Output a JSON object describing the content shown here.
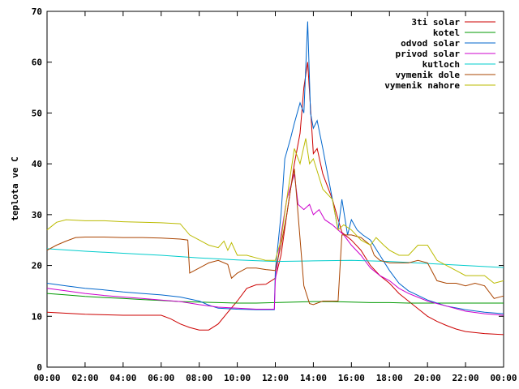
{
  "chart_data": {
    "type": "line",
    "title": "",
    "xlabel": "",
    "ylabel": "teplota ve C",
    "xlim": [
      0,
      24
    ],
    "ylim": [
      0,
      70
    ],
    "x_ticks": [
      "00:00",
      "02:00",
      "04:00",
      "06:00",
      "08:00",
      "10:00",
      "12:00",
      "14:00",
      "16:00",
      "18:00",
      "20:00",
      "22:00",
      "00:00"
    ],
    "y_ticks": [
      "0",
      "10",
      "20",
      "30",
      "40",
      "50",
      "60",
      "70"
    ],
    "grid": false,
    "legend_position": "top-right",
    "series": [
      {
        "name": "3ti solar",
        "color": "#cc0000",
        "points": [
          [
            0,
            10.8
          ],
          [
            1,
            10.6
          ],
          [
            2,
            10.4
          ],
          [
            3,
            10.3
          ],
          [
            4,
            10.2
          ],
          [
            5,
            10.2
          ],
          [
            6,
            10.2
          ],
          [
            6.5,
            9.5
          ],
          [
            7,
            8.5
          ],
          [
            7.5,
            7.8
          ],
          [
            8,
            7.3
          ],
          [
            8.5,
            7.3
          ],
          [
            9,
            8.5
          ],
          [
            9.5,
            10.8
          ],
          [
            10,
            13
          ],
          [
            10.5,
            15.5
          ],
          [
            11,
            16.2
          ],
          [
            11.5,
            16.3
          ],
          [
            12,
            17.5
          ],
          [
            12.3,
            22
          ],
          [
            12.6,
            30
          ],
          [
            13,
            40
          ],
          [
            13.3,
            46
          ],
          [
            13.5,
            55
          ],
          [
            13.7,
            60
          ],
          [
            14,
            42
          ],
          [
            14.2,
            43
          ],
          [
            14.5,
            38
          ],
          [
            15,
            33
          ],
          [
            15.5,
            26.5
          ],
          [
            16,
            25
          ],
          [
            16.5,
            23
          ],
          [
            17,
            20
          ],
          [
            17.5,
            18
          ],
          [
            18,
            16.5
          ],
          [
            18.5,
            14.5
          ],
          [
            19,
            13
          ],
          [
            19.5,
            11.5
          ],
          [
            20,
            10
          ],
          [
            20.5,
            9
          ],
          [
            21,
            8.2
          ],
          [
            21.5,
            7.5
          ],
          [
            22,
            7
          ],
          [
            22.5,
            6.8
          ],
          [
            23,
            6.6
          ],
          [
            24,
            6.4
          ]
        ]
      },
      {
        "name": "kotel",
        "color": "#009900",
        "points": [
          [
            0,
            14.5
          ],
          [
            1,
            14.2
          ],
          [
            2,
            13.9
          ],
          [
            3,
            13.7
          ],
          [
            4,
            13.5
          ],
          [
            5,
            13.3
          ],
          [
            6,
            13.1
          ],
          [
            7,
            12.9
          ],
          [
            8,
            12.8
          ],
          [
            9,
            12.7
          ],
          [
            10,
            12.6
          ],
          [
            11,
            12.6
          ],
          [
            12,
            12.7
          ],
          [
            13,
            12.8
          ],
          [
            14,
            12.9
          ],
          [
            15,
            12.9
          ],
          [
            16,
            12.8
          ],
          [
            17,
            12.7
          ],
          [
            18,
            12.7
          ],
          [
            19,
            12.6
          ],
          [
            20,
            12.6
          ],
          [
            21,
            12.6
          ],
          [
            22,
            12.6
          ],
          [
            23,
            12.6
          ],
          [
            24,
            12.6
          ]
        ]
      },
      {
        "name": "odvod solar",
        "color": "#0066cc",
        "points": [
          [
            0,
            16.5
          ],
          [
            1,
            16
          ],
          [
            2,
            15.5
          ],
          [
            3,
            15.2
          ],
          [
            4,
            14.8
          ],
          [
            5,
            14.5
          ],
          [
            6,
            14.2
          ],
          [
            7,
            13.8
          ],
          [
            8,
            13
          ],
          [
            8.5,
            12.2
          ],
          [
            9,
            11.6
          ],
          [
            10,
            11.4
          ],
          [
            11,
            11.3
          ],
          [
            11.95,
            11.3
          ],
          [
            12,
            19
          ],
          [
            12.3,
            30
          ],
          [
            12.5,
            41
          ],
          [
            12.8,
            45
          ],
          [
            13,
            48
          ],
          [
            13.3,
            52
          ],
          [
            13.5,
            50
          ],
          [
            13.7,
            68
          ],
          [
            13.85,
            50
          ],
          [
            14,
            47
          ],
          [
            14.2,
            48.5
          ],
          [
            14.5,
            43
          ],
          [
            14.8,
            37
          ],
          [
            15,
            33
          ],
          [
            15.3,
            27
          ],
          [
            15.5,
            33
          ],
          [
            15.8,
            26
          ],
          [
            16,
            29
          ],
          [
            16.3,
            27
          ],
          [
            16.6,
            26
          ],
          [
            17,
            25
          ],
          [
            17.5,
            22
          ],
          [
            18,
            19
          ],
          [
            18.5,
            16.5
          ],
          [
            19,
            15
          ],
          [
            20,
            13.2
          ],
          [
            21,
            12
          ],
          [
            22,
            11.3
          ],
          [
            23,
            10.8
          ],
          [
            24,
            10.5
          ]
        ]
      },
      {
        "name": "privod solar",
        "color": "#cc00cc",
        "points": [
          [
            0,
            15.5
          ],
          [
            1,
            15
          ],
          [
            2,
            14.5
          ],
          [
            3,
            14.1
          ],
          [
            4,
            13.8
          ],
          [
            5,
            13.5
          ],
          [
            6,
            13.2
          ],
          [
            7,
            12.9
          ],
          [
            8,
            12.3
          ],
          [
            9,
            11.8
          ],
          [
            10,
            11.6
          ],
          [
            11,
            11.4
          ],
          [
            11.95,
            11.4
          ],
          [
            12,
            17
          ],
          [
            12.3,
            26
          ],
          [
            12.6,
            33
          ],
          [
            13,
            38
          ],
          [
            13.2,
            32
          ],
          [
            13.5,
            31
          ],
          [
            13.8,
            32
          ],
          [
            14,
            30
          ],
          [
            14.3,
            31
          ],
          [
            14.6,
            29
          ],
          [
            15,
            28
          ],
          [
            15.3,
            27
          ],
          [
            15.6,
            26
          ],
          [
            16,
            24
          ],
          [
            16.5,
            22
          ],
          [
            17,
            19.5
          ],
          [
            17.5,
            18
          ],
          [
            18,
            17
          ],
          [
            18.5,
            15.5
          ],
          [
            19,
            14.5
          ],
          [
            20,
            13
          ],
          [
            21,
            12
          ],
          [
            22,
            11
          ],
          [
            23,
            10.5
          ],
          [
            24,
            10.2
          ]
        ]
      },
      {
        "name": "kutloch",
        "color": "#00cccc",
        "points": [
          [
            0,
            23.3
          ],
          [
            2,
            22.8
          ],
          [
            4,
            22.4
          ],
          [
            6,
            22
          ],
          [
            8,
            21.5
          ],
          [
            10,
            21.1
          ],
          [
            12,
            20.8
          ],
          [
            14,
            20.9
          ],
          [
            16,
            21
          ],
          [
            18,
            20.8
          ],
          [
            20,
            20.4
          ],
          [
            22,
            20
          ],
          [
            24,
            19.6
          ]
        ]
      },
      {
        "name": "vymenik dole",
        "color": "#aa4400",
        "points": [
          [
            0,
            23
          ],
          [
            0.5,
            24
          ],
          [
            1,
            24.8
          ],
          [
            1.5,
            25.5
          ],
          [
            2,
            25.6
          ],
          [
            3,
            25.6
          ],
          [
            4,
            25.5
          ],
          [
            5,
            25.5
          ],
          [
            6,
            25.4
          ],
          [
            7,
            25.2
          ],
          [
            7.4,
            25
          ],
          [
            7.5,
            18.5
          ],
          [
            8,
            19.5
          ],
          [
            8.5,
            20.5
          ],
          [
            9,
            21
          ],
          [
            9.5,
            20.2
          ],
          [
            9.7,
            17.5
          ],
          [
            10,
            18.5
          ],
          [
            10.5,
            19.5
          ],
          [
            11,
            19.5
          ],
          [
            11.5,
            19.2
          ],
          [
            12,
            19
          ],
          [
            12.3,
            24
          ],
          [
            12.6,
            30
          ],
          [
            12.8,
            35
          ],
          [
            13,
            39
          ],
          [
            13.2,
            30
          ],
          [
            13.5,
            16
          ],
          [
            13.8,
            12.5
          ],
          [
            14,
            12.3
          ],
          [
            14.5,
            13
          ],
          [
            15,
            13
          ],
          [
            15.3,
            13
          ],
          [
            15.5,
            26
          ],
          [
            16,
            26
          ],
          [
            16.5,
            25.5
          ],
          [
            17,
            24
          ],
          [
            17.2,
            22
          ],
          [
            17.5,
            21
          ],
          [
            18,
            20.5
          ],
          [
            18.5,
            20.5
          ],
          [
            19,
            20.5
          ],
          [
            19.5,
            21
          ],
          [
            20,
            20.5
          ],
          [
            20.5,
            17
          ],
          [
            21,
            16.5
          ],
          [
            21.5,
            16.5
          ],
          [
            22,
            16
          ],
          [
            22.5,
            16.5
          ],
          [
            23,
            16
          ],
          [
            23.5,
            13.5
          ],
          [
            24,
            14
          ]
        ]
      },
      {
        "name": "vymenik nahore",
        "color": "#bbbb00",
        "points": [
          [
            0,
            27
          ],
          [
            0.5,
            28.5
          ],
          [
            1,
            29
          ],
          [
            2,
            28.8
          ],
          [
            3,
            28.8
          ],
          [
            4,
            28.6
          ],
          [
            5,
            28.5
          ],
          [
            6,
            28.4
          ],
          [
            7,
            28.2
          ],
          [
            7.5,
            26
          ],
          [
            8,
            25
          ],
          [
            8.5,
            24
          ],
          [
            9,
            23.5
          ],
          [
            9.3,
            24.8
          ],
          [
            9.5,
            23
          ],
          [
            9.7,
            24.5
          ],
          [
            10,
            22
          ],
          [
            10.5,
            22
          ],
          [
            11,
            21.5
          ],
          [
            11.5,
            21
          ],
          [
            12,
            21
          ],
          [
            12.3,
            25
          ],
          [
            12.6,
            33
          ],
          [
            13,
            43
          ],
          [
            13.3,
            40
          ],
          [
            13.6,
            45
          ],
          [
            13.8,
            40
          ],
          [
            14,
            41
          ],
          [
            14.5,
            35
          ],
          [
            15,
            33
          ],
          [
            15.3,
            27
          ],
          [
            15.6,
            28
          ],
          [
            16,
            27
          ],
          [
            16.5,
            25
          ],
          [
            17,
            24
          ],
          [
            17.3,
            25.5
          ],
          [
            17.7,
            24
          ],
          [
            18,
            23
          ],
          [
            18.5,
            22
          ],
          [
            19,
            22
          ],
          [
            19.5,
            24
          ],
          [
            20,
            24
          ],
          [
            20.5,
            21
          ],
          [
            21,
            20
          ],
          [
            21.5,
            19
          ],
          [
            22,
            18
          ],
          [
            22.5,
            18
          ],
          [
            23,
            18
          ],
          [
            23.5,
            16.5
          ],
          [
            24,
            17
          ]
        ]
      }
    ]
  }
}
